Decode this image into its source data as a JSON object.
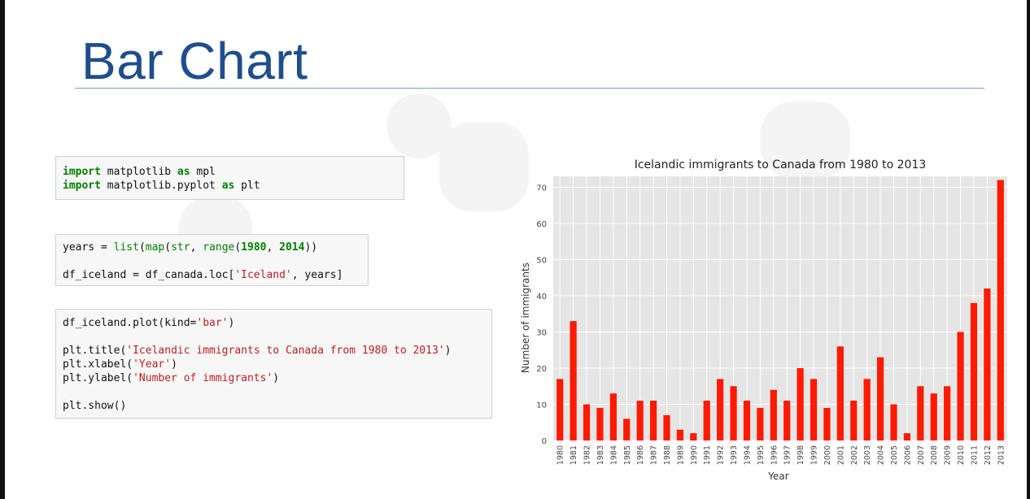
{
  "slide": {
    "title": "Bar Chart"
  },
  "cells": {
    "cell1": [
      [
        {
          "t": "import",
          "c": "kw"
        },
        {
          "t": " matplotlib "
        },
        {
          "t": "as",
          "c": "kw"
        },
        {
          "t": " mpl"
        }
      ],
      [
        {
          "t": "import",
          "c": "kw"
        },
        {
          "t": " matplotlib.pyplot "
        },
        {
          "t": "as",
          "c": "kw"
        },
        {
          "t": " plt"
        }
      ]
    ],
    "cell2": [
      [
        {
          "t": "years = "
        },
        {
          "t": "list",
          "c": "fn"
        },
        {
          "t": "("
        },
        {
          "t": "map",
          "c": "fn"
        },
        {
          "t": "("
        },
        {
          "t": "str",
          "c": "fn"
        },
        {
          "t": ", "
        },
        {
          "t": "range",
          "c": "fn"
        },
        {
          "t": "("
        },
        {
          "t": "1980",
          "c": "num"
        },
        {
          "t": ", "
        },
        {
          "t": "2014",
          "c": "num"
        },
        {
          "t": "))"
        }
      ],
      [],
      [
        {
          "t": "df_iceland = df_canada.loc["
        },
        {
          "t": "'Iceland'",
          "c": "str"
        },
        {
          "t": ", years]"
        }
      ]
    ],
    "cell3": [
      [
        {
          "t": "df_iceland.plot(kind="
        },
        {
          "t": "'bar'",
          "c": "str"
        },
        {
          "t": ")"
        }
      ],
      [],
      [
        {
          "t": "plt.title("
        },
        {
          "t": "'Icelandic immigrants to Canada from 1980 to 2013'",
          "c": "str"
        },
        {
          "t": ")"
        }
      ],
      [
        {
          "t": "plt.xlabel("
        },
        {
          "t": "'Year'",
          "c": "str"
        },
        {
          "t": ")"
        }
      ],
      [
        {
          "t": "plt.ylabel("
        },
        {
          "t": "'Number of immigrants'",
          "c": "str"
        },
        {
          "t": ")"
        }
      ],
      [],
      [
        {
          "t": "plt.show()"
        }
      ]
    ]
  },
  "colors": {
    "bar": "#ff1a00",
    "plot_bg": "#e5e5e5",
    "grid": "#ffffff",
    "title_blue": "#1f4e8c"
  },
  "chart_data": {
    "type": "bar",
    "title": "Icelandic immigrants to Canada from 1980 to 2013",
    "xlabel": "Year",
    "ylabel": "Number of immigrants",
    "ylim": [
      0,
      73
    ],
    "yticks": [
      0,
      10,
      20,
      30,
      40,
      50,
      60,
      70
    ],
    "grid": true,
    "categories": [
      "1980",
      "1981",
      "1982",
      "1983",
      "1984",
      "1985",
      "1986",
      "1987",
      "1988",
      "1989",
      "1990",
      "1991",
      "1992",
      "1993",
      "1994",
      "1995",
      "1996",
      "1997",
      "1998",
      "1999",
      "2000",
      "2001",
      "2002",
      "2003",
      "2004",
      "2005",
      "2006",
      "2007",
      "2008",
      "2009",
      "2010",
      "2011",
      "2012",
      "2013"
    ],
    "values": [
      17,
      33,
      10,
      9,
      13,
      6,
      11,
      11,
      7,
      3,
      2,
      11,
      17,
      15,
      11,
      9,
      14,
      11,
      20,
      17,
      9,
      26,
      11,
      17,
      23,
      10,
      2,
      15,
      13,
      15,
      30,
      38,
      42,
      72
    ]
  }
}
